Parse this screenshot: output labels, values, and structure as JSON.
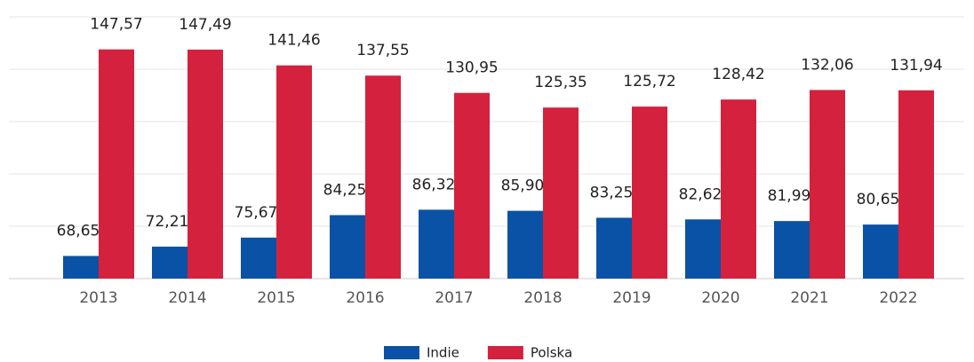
{
  "chart_data": {
    "type": "bar",
    "categories": [
      "2013",
      "2014",
      "2015",
      "2016",
      "2017",
      "2018",
      "2019",
      "2020",
      "2021",
      "2022"
    ],
    "series": [
      {
        "name": "Indie",
        "color": "#0a52a5",
        "values": [
          68.65,
          72.21,
          75.67,
          84.25,
          86.32,
          85.9,
          83.25,
          82.62,
          81.99,
          80.65
        ],
        "value_labels": [
          "68,65",
          "72,21",
          "75,67",
          "84,25",
          "86,32",
          "85,90",
          "83,25",
          "82,62",
          "81,99",
          "80,65"
        ]
      },
      {
        "name": "Polska",
        "color": "#d4213d",
        "values": [
          147.57,
          147.49,
          141.46,
          137.55,
          130.95,
          125.35,
          125.72,
          128.42,
          132.06,
          131.94
        ],
        "value_labels": [
          "147,57",
          "147,49",
          "141,46",
          "137,55",
          "130,95",
          "125,35",
          "125,72",
          "128,42",
          "132,06",
          "131,94"
        ]
      }
    ],
    "ylim": [
      60,
      160
    ],
    "yticks": [
      60,
      80,
      100,
      120,
      140,
      160
    ],
    "grid": true,
    "legend": "bottom"
  }
}
